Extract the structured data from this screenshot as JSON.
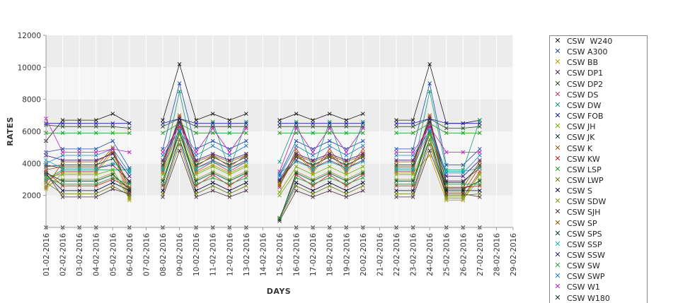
{
  "chart_data": {
    "type": "line",
    "xlabel": "DAYS",
    "ylabel": "RATES",
    "ylim": [
      0,
      12000
    ],
    "yticks": [
      2000,
      4000,
      6000,
      8000,
      10000,
      12000
    ],
    "grid": "alternating horizontal bands",
    "legend_position": "right",
    "marker": "x",
    "categories": [
      "01-02-2016",
      "02-02-2016",
      "03-02-2016",
      "04-02-2016",
      "05-02-2016",
      "06-02-2016",
      "07-02-2016",
      "08-02-2016",
      "09-02-2016",
      "10-02-2016",
      "11-02-2016",
      "12-02-2016",
      "13-02-2016",
      "14-02-2016",
      "15-02-2016",
      "16-02-2016",
      "17-02-2016",
      "18-02-2016",
      "19-02-2016",
      "20-02-2016",
      "21-02-2016",
      "22-02-2016",
      "23-02-2016",
      "24-02-2016",
      "25-02-2016",
      "26-02-2016",
      "27-02-2016",
      "28-02-2016",
      "29-02-2016"
    ],
    "series": [
      {
        "name": "CSW  W240",
        "color": "#1a1a1a",
        "values": [
          5400,
          6700,
          6700,
          6700,
          7100,
          6500,
          null,
          6700,
          10200,
          6700,
          7100,
          6700,
          7100,
          null,
          6700,
          7100,
          6700,
          7100,
          6700,
          7100,
          null,
          6700,
          6700,
          10200,
          6500,
          6500,
          6700,
          null,
          null
        ]
      },
      {
        "name": "CSW A300",
        "color": "#1f4fa8",
        "values": [
          4700,
          4900,
          4900,
          4900,
          5400,
          3700,
          null,
          4900,
          9000,
          4900,
          5400,
          4900,
          5400,
          null,
          3300,
          5400,
          4900,
          5400,
          4900,
          5400,
          null,
          4900,
          4900,
          9000,
          3900,
          3900,
          4900,
          null,
          null
        ]
      },
      {
        "name": "CSW BB",
        "color": "#b8a000",
        "values": [
          2400,
          3400,
          3400,
          3400,
          4700,
          1700,
          null,
          3400,
          6200,
          3400,
          3900,
          3400,
          3900,
          null,
          2800,
          4700,
          3400,
          4700,
          3400,
          4700,
          null,
          3400,
          3400,
          4500,
          1700,
          1700,
          3400,
          null,
          null
        ]
      },
      {
        "name": "CSW DP1",
        "color": "#5a1a5a",
        "values": [
          3900,
          3700,
          3700,
          3700,
          3900,
          2900,
          null,
          3700,
          6500,
          3700,
          4200,
          3700,
          4200,
          null,
          2900,
          4200,
          3700,
          4200,
          3700,
          4200,
          null,
          3700,
          3700,
          6500,
          2900,
          2900,
          3700,
          null,
          null
        ]
      },
      {
        "name": "CSW DP2",
        "color": "#2a4a2a",
        "values": [
          6400,
          6300,
          6300,
          6300,
          6300,
          6200,
          null,
          6300,
          6800,
          6300,
          6300,
          6300,
          6300,
          null,
          6300,
          6300,
          6300,
          6300,
          6300,
          6300,
          null,
          6300,
          6300,
          6800,
          6200,
          6200,
          6300,
          null,
          null
        ]
      },
      {
        "name": "CSW DS",
        "color": "#c04060",
        "values": [
          2900,
          3500,
          3500,
          3500,
          4900,
          1900,
          null,
          3500,
          6900,
          3500,
          4100,
          3500,
          4100,
          null,
          2500,
          4900,
          3500,
          4900,
          3500,
          4900,
          null,
          3500,
          3500,
          6900,
          1900,
          1900,
          3500,
          null,
          null
        ]
      },
      {
        "name": "CSW DW",
        "color": "#10a070",
        "values": [
          3000,
          3600,
          3600,
          3600,
          3600,
          3600,
          null,
          3600,
          8500,
          3600,
          6600,
          3600,
          6600,
          null,
          4100,
          6600,
          3600,
          6600,
          3600,
          6600,
          null,
          3600,
          3600,
          8500,
          3600,
          3600,
          6700,
          null,
          null
        ]
      },
      {
        "name": "CSW FOB",
        "color": "#1a1aa0",
        "values": [
          6500,
          6500,
          6500,
          6500,
          6500,
          6500,
          null,
          6500,
          6800,
          6500,
          6500,
          6500,
          6500,
          null,
          6500,
          6500,
          6500,
          6500,
          6500,
          6500,
          null,
          6500,
          6500,
          6800,
          6500,
          6500,
          6500,
          null,
          null
        ]
      },
      {
        "name": "CSW JH",
        "color": "#70b000",
        "values": [
          3200,
          3300,
          3300,
          3300,
          3600,
          1900,
          null,
          3300,
          5800,
          3300,
          3800,
          3300,
          3800,
          null,
          2200,
          3800,
          3300,
          3800,
          3300,
          3800,
          null,
          3300,
          3300,
          5800,
          1900,
          1900,
          3300,
          null,
          null
        ]
      },
      {
        "name": "CSW JK",
        "color": "#103a30",
        "values": [
          3800,
          3900,
          3900,
          3900,
          4300,
          2800,
          null,
          3900,
          6800,
          3900,
          4400,
          3900,
          4400,
          null,
          2900,
          4400,
          3900,
          4400,
          3900,
          4400,
          null,
          3900,
          3900,
          6800,
          2800,
          2800,
          3900,
          null,
          null
        ]
      },
      {
        "name": "CSW K",
        "color": "#a05a10",
        "values": [
          3600,
          3800,
          3800,
          3800,
          5000,
          2200,
          null,
          3800,
          7000,
          3800,
          4500,
          3800,
          4500,
          null,
          2600,
          4500,
          3800,
          4500,
          3800,
          4500,
          null,
          3800,
          3800,
          7000,
          2200,
          2200,
          3800,
          null,
          null
        ]
      },
      {
        "name": "CSW KW",
        "color": "#c02020",
        "values": [
          3500,
          2600,
          2600,
          2600,
          3000,
          2500,
          null,
          2600,
          6300,
          2600,
          3300,
          2600,
          3300,
          null,
          500,
          3300,
          2600,
          3300,
          2600,
          3300,
          null,
          2600,
          2600,
          6300,
          2500,
          2500,
          2600,
          null,
          null
        ]
      },
      {
        "name": "CSW LSP",
        "color": "#20a020",
        "values": [
          5900,
          5900,
          5900,
          5900,
          5900,
          5900,
          null,
          5900,
          6500,
          5900,
          5900,
          5900,
          5900,
          null,
          5900,
          5900,
          5900,
          5900,
          5900,
          5900,
          null,
          5900,
          5900,
          6500,
          5900,
          5900,
          5900,
          null,
          null
        ]
      },
      {
        "name": "CSW LWP",
        "color": "#6a7a10",
        "values": [
          2800,
          2100,
          2100,
          2100,
          2600,
          2000,
          null,
          2100,
          5200,
          2100,
          2600,
          2100,
          2600,
          null,
          500,
          2600,
          2100,
          2600,
          2100,
          2600,
          null,
          2100,
          2100,
          5200,
          2000,
          2000,
          2100,
          null,
          null
        ]
      },
      {
        "name": "CSW S",
        "color": "#0a0a40",
        "values": [
          3300,
          2300,
          2300,
          2300,
          2800,
          2300,
          null,
          2300,
          5500,
          2300,
          2800,
          2300,
          2800,
          null,
          600,
          2800,
          2300,
          2800,
          2300,
          2800,
          null,
          2300,
          2300,
          5500,
          2300,
          2300,
          2300,
          null,
          null
        ]
      },
      {
        "name": "CSW SDW",
        "color": "#80a020",
        "values": [
          2600,
          3000,
          3000,
          3000,
          3400,
          1800,
          null,
          3000,
          5500,
          3000,
          3500,
          3000,
          3500,
          null,
          2000,
          3500,
          3000,
          3500,
          3000,
          3500,
          null,
          3000,
          3000,
          5500,
          1800,
          1800,
          3000,
          null,
          null
        ]
      },
      {
        "name": "CSW SJH",
        "color": "#503040",
        "values": [
          3400,
          1900,
          1900,
          1900,
          2400,
          2100,
          null,
          1900,
          4800,
          1900,
          2300,
          1900,
          2300,
          null,
          400,
          2300,
          1900,
          2300,
          1900,
          2300,
          null,
          1900,
          1900,
          4800,
          2100,
          2100,
          1900,
          null,
          null
        ]
      },
      {
        "name": "CSW SP",
        "color": "#905a00",
        "values": [
          2500,
          4100,
          4100,
          4100,
          4700,
          2500,
          null,
          4100,
          6600,
          4100,
          4500,
          4100,
          4500,
          null,
          2700,
          4500,
          4100,
          4500,
          4100,
          4500,
          null,
          4100,
          4100,
          6600,
          2500,
          2500,
          4100,
          null,
          null
        ]
      },
      {
        "name": "CSW SPS",
        "color": "#004030",
        "values": [
          3400,
          2900,
          2900,
          2900,
          3300,
          2400,
          null,
          2900,
          6000,
          2900,
          3400,
          2900,
          3400,
          null,
          500,
          3400,
          2900,
          3400,
          2900,
          3400,
          null,
          2900,
          2900,
          6000,
          2400,
          2400,
          2900,
          null,
          null
        ]
      },
      {
        "name": "CSW SSP",
        "color": "#20b0b0",
        "values": [
          4200,
          3700,
          3700,
          3700,
          4000,
          3500,
          null,
          3700,
          6100,
          3700,
          4100,
          3700,
          4100,
          null,
          3400,
          4100,
          3700,
          4100,
          3700,
          4100,
          null,
          3700,
          3700,
          6100,
          3500,
          3500,
          3700,
          null,
          null
        ]
      },
      {
        "name": "CSW SSW",
        "color": "#401880",
        "values": [
          4500,
          4200,
          4200,
          4200,
          4600,
          3200,
          null,
          4200,
          6600,
          4200,
          4600,
          4200,
          4600,
          null,
          3000,
          4600,
          4200,
          4600,
          4200,
          4600,
          null,
          4200,
          4200,
          6600,
          3200,
          3200,
          4200,
          null,
          null
        ]
      },
      {
        "name": "CSW SW",
        "color": "#30a040",
        "values": [
          3100,
          2700,
          2700,
          2700,
          3100,
          2700,
          null,
          2700,
          5900,
          2700,
          3100,
          2700,
          3100,
          null,
          600,
          3100,
          2700,
          3100,
          2700,
          3100,
          null,
          2700,
          2700,
          5900,
          2700,
          2700,
          2700,
          null,
          null
        ]
      },
      {
        "name": "CSW SWP",
        "color": "#2080c0",
        "values": [
          4000,
          4500,
          4500,
          4500,
          4900,
          3400,
          null,
          4500,
          6000,
          4500,
          5100,
          4500,
          5100,
          null,
          3200,
          5100,
          4500,
          5100,
          4500,
          5100,
          null,
          4500,
          4500,
          6000,
          3400,
          3400,
          4500,
          null,
          null
        ]
      },
      {
        "name": "CSW W1",
        "color": "#c020c0",
        "values": [
          6800,
          4700,
          4700,
          4700,
          4900,
          4700,
          null,
          4700,
          6300,
          4700,
          6200,
          4700,
          6200,
          null,
          3500,
          6200,
          4700,
          6200,
          4700,
          6200,
          null,
          4700,
          4700,
          6300,
          4700,
          4700,
          4700,
          null,
          null
        ]
      },
      {
        "name": "CSW W180",
        "color": "#103020",
        "values": [
          null,
          null,
          null,
          null,
          null,
          null,
          null,
          null,
          null,
          null,
          null,
          null,
          null,
          null,
          null,
          null,
          null,
          null,
          null,
          null,
          null,
          null,
          null,
          null,
          null,
          null,
          null,
          null,
          null
        ]
      },
      {
        "name": "",
        "color": "#333333",
        "values": [
          0,
          0,
          0,
          0,
          null,
          0,
          null,
          0,
          null,
          0,
          0,
          0,
          0,
          null,
          null,
          0,
          0,
          0,
          0,
          0,
          null,
          0,
          0,
          null,
          0,
          0,
          0,
          null,
          null
        ]
      }
    ]
  }
}
